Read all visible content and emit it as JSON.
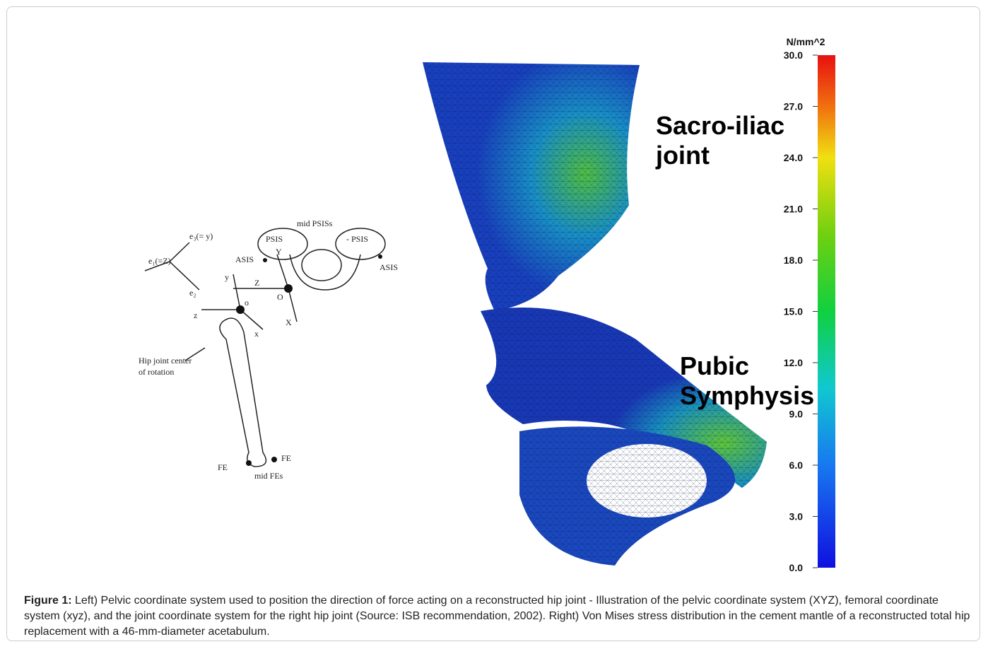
{
  "figure": {
    "colorbar": {
      "unit": "N/mm^2",
      "ticks": [
        "30.0",
        "27.0",
        "24.0",
        "21.0",
        "18.0",
        "15.0",
        "12.0",
        "9.0",
        "6.0",
        "3.0",
        "0.0"
      ]
    },
    "annotations": {
      "sacro_iliac": [
        "Sacro-iliac",
        "joint"
      ],
      "pubic": [
        "Pubic",
        "Symphysis"
      ]
    },
    "diagram": {
      "e3": "e₃(= y)",
      "e1": "e₁(=Z)",
      "e2": "e₂",
      "mid_psis": "mid  PSISs",
      "psis_left": "PSIS",
      "psis_right": "- PSIS",
      "asis_left": "ASIS",
      "asis_right": "ASIS",
      "Y": "Y",
      "Z": "Z",
      "O": "O",
      "X": "X",
      "y": "y",
      "z": "z",
      "o": "o",
      "x": "x",
      "hip_center": [
        "Hip joint center",
        "of rotation"
      ],
      "fe_left": "FE",
      "fe_right": "FE",
      "mid_fes": "mid FEs"
    },
    "caption": {
      "label": "Figure 1:",
      "text": " Left) Pelvic coordinate system used to position the direction of force acting on a reconstructed hip joint - Illustration of the pelvic coordinate system (XYZ), femoral coordinate system (xyz), and the joint coordinate system for the right hip joint (Source: ISB recommendation, 2002). Right) Von Mises stress distribution in the cement mantle of a reconstructed total hip replacement with a 46-mm-diameter acetabulum."
    }
  }
}
